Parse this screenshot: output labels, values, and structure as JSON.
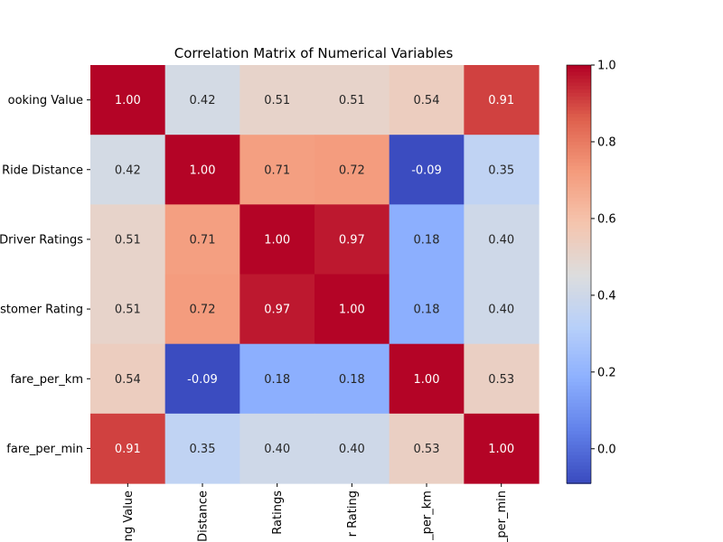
{
  "chart_data": {
    "type": "heatmap",
    "title": "Correlation Matrix of Numerical Variables",
    "rows": [
      "ooking Value",
      "Ride Distance",
      "Driver Ratings",
      "stomer Rating",
      "fare_per_km",
      "fare_per_min"
    ],
    "columns": [
      "ng Value",
      "Distance",
      "Ratings",
      "r Rating",
      "_per_km",
      "_per_min"
    ],
    "values": [
      [
        1.0,
        0.42,
        0.51,
        0.51,
        0.54,
        0.91
      ],
      [
        0.42,
        1.0,
        0.71,
        0.72,
        -0.09,
        0.35
      ],
      [
        0.51,
        0.71,
        1.0,
        0.97,
        0.18,
        0.4
      ],
      [
        0.51,
        0.72,
        0.97,
        1.0,
        0.18,
        0.4
      ],
      [
        0.54,
        -0.09,
        0.18,
        0.18,
        1.0,
        0.53
      ],
      [
        0.91,
        0.35,
        0.4,
        0.4,
        0.53,
        1.0
      ]
    ],
    "value_labels": [
      [
        "1.00",
        "0.42",
        "0.51",
        "0.51",
        "0.54",
        "0.91"
      ],
      [
        "0.42",
        "1.00",
        "0.71",
        "0.72",
        "-0.09",
        "0.35"
      ],
      [
        "0.51",
        "0.71",
        "1.00",
        "0.97",
        "0.18",
        "0.40"
      ],
      [
        "0.51",
        "0.72",
        "0.97",
        "1.00",
        "0.18",
        "0.40"
      ],
      [
        "0.54",
        "-0.09",
        "0.18",
        "0.18",
        "1.00",
        "0.53"
      ],
      [
        "0.91",
        "0.35",
        "0.40",
        "0.40",
        "0.53",
        "1.00"
      ]
    ],
    "colormap": "coolwarm",
    "vmin": -0.09,
    "vmax": 1.0,
    "colorbar": {
      "ticks": [
        0.0,
        0.2,
        0.4,
        0.6,
        0.8,
        1.0
      ],
      "tick_labels": [
        "0.0",
        "0.2",
        "0.4",
        "0.6",
        "0.8",
        "1.0"
      ]
    }
  }
}
